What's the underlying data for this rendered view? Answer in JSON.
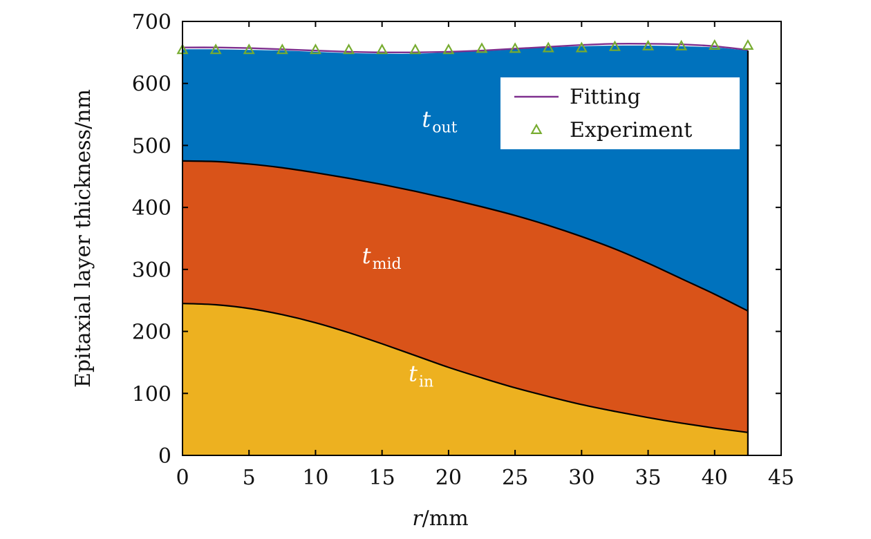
{
  "chart_data": {
    "type": "area",
    "xlabel_var": "r",
    "xlabel_unit": "/mm",
    "ylabel": "Epitaxial layer thickness/nm",
    "xlim": [
      0,
      45
    ],
    "ylim": [
      0,
      700
    ],
    "xticks": [
      "0",
      "5",
      "10",
      "15",
      "20",
      "25",
      "30",
      "35",
      "40",
      "45"
    ],
    "yticks": [
      "0",
      "100",
      "200",
      "300",
      "400",
      "500",
      "600",
      "700"
    ],
    "grid": false,
    "legend_position": "top-right",
    "layers": [
      {
        "name": "t_in",
        "label_main": "t",
        "label_sub": "in",
        "label_pos": [
          17,
          120
        ],
        "color": "#EDB120",
        "boundary": {
          "x": [
            0,
            2.5,
            5,
            7.5,
            10,
            12.5,
            15,
            17.5,
            20,
            22.5,
            25,
            27.5,
            30,
            32.5,
            35,
            37.5,
            40,
            42.5
          ],
          "y": [
            245,
            243,
            237,
            227,
            214,
            198,
            180,
            161,
            142,
            125,
            109,
            95,
            82,
            71,
            61,
            52,
            44,
            37
          ]
        }
      },
      {
        "name": "t_mid",
        "label_main": "t",
        "label_sub": "mid",
        "label_pos": [
          13.5,
          310
        ],
        "color": "#D95319",
        "boundary": {
          "x": [
            0,
            2.5,
            5,
            7.5,
            10,
            12.5,
            15,
            17.5,
            20,
            22.5,
            25,
            27.5,
            30,
            32.5,
            35,
            37.5,
            40,
            42.5
          ],
          "y": [
            475,
            474,
            470,
            464,
            456,
            447,
            437,
            426,
            414,
            401,
            387,
            371,
            353,
            333,
            310,
            285,
            260,
            233
          ]
        }
      },
      {
        "name": "t_out",
        "label_main": "t",
        "label_sub": "out",
        "label_pos": [
          18,
          530
        ],
        "color": "#0072BD",
        "boundary": {
          "x": [
            0,
            2.5,
            5,
            7.5,
            10,
            12.5,
            15,
            17.5,
            20,
            22.5,
            25,
            27.5,
            30,
            32.5,
            35,
            37.5,
            40,
            42.5
          ],
          "y": [
            655,
            655,
            654,
            653,
            651,
            649,
            648,
            648,
            650,
            652,
            655,
            658,
            660,
            661,
            661,
            660,
            658,
            653
          ]
        }
      }
    ],
    "series": [
      {
        "name": "Fitting",
        "style": "line",
        "color": "#7E2F8E",
        "x": [
          0,
          2.5,
          5,
          7.5,
          10,
          12.5,
          15,
          17.5,
          20,
          22.5,
          25,
          27.5,
          30,
          32.5,
          35,
          37.5,
          40,
          42.5
        ],
        "y": [
          658,
          658,
          657,
          655,
          653,
          651,
          650,
          650,
          651,
          653,
          656,
          659,
          662,
          664,
          664,
          663,
          660,
          654
        ]
      },
      {
        "name": "Experiment",
        "style": "triangle-markers",
        "color": "#77AC30",
        "x": [
          0,
          2.5,
          5,
          7.5,
          10,
          12.5,
          15,
          17.5,
          20,
          22.5,
          25,
          27.5,
          30,
          32.5,
          35,
          37.5,
          40,
          42.5
        ],
        "y": [
          654,
          654,
          654,
          654,
          654,
          654,
          654,
          654,
          654,
          656,
          656,
          657,
          657,
          659,
          660,
          660,
          661,
          661
        ]
      }
    ]
  }
}
